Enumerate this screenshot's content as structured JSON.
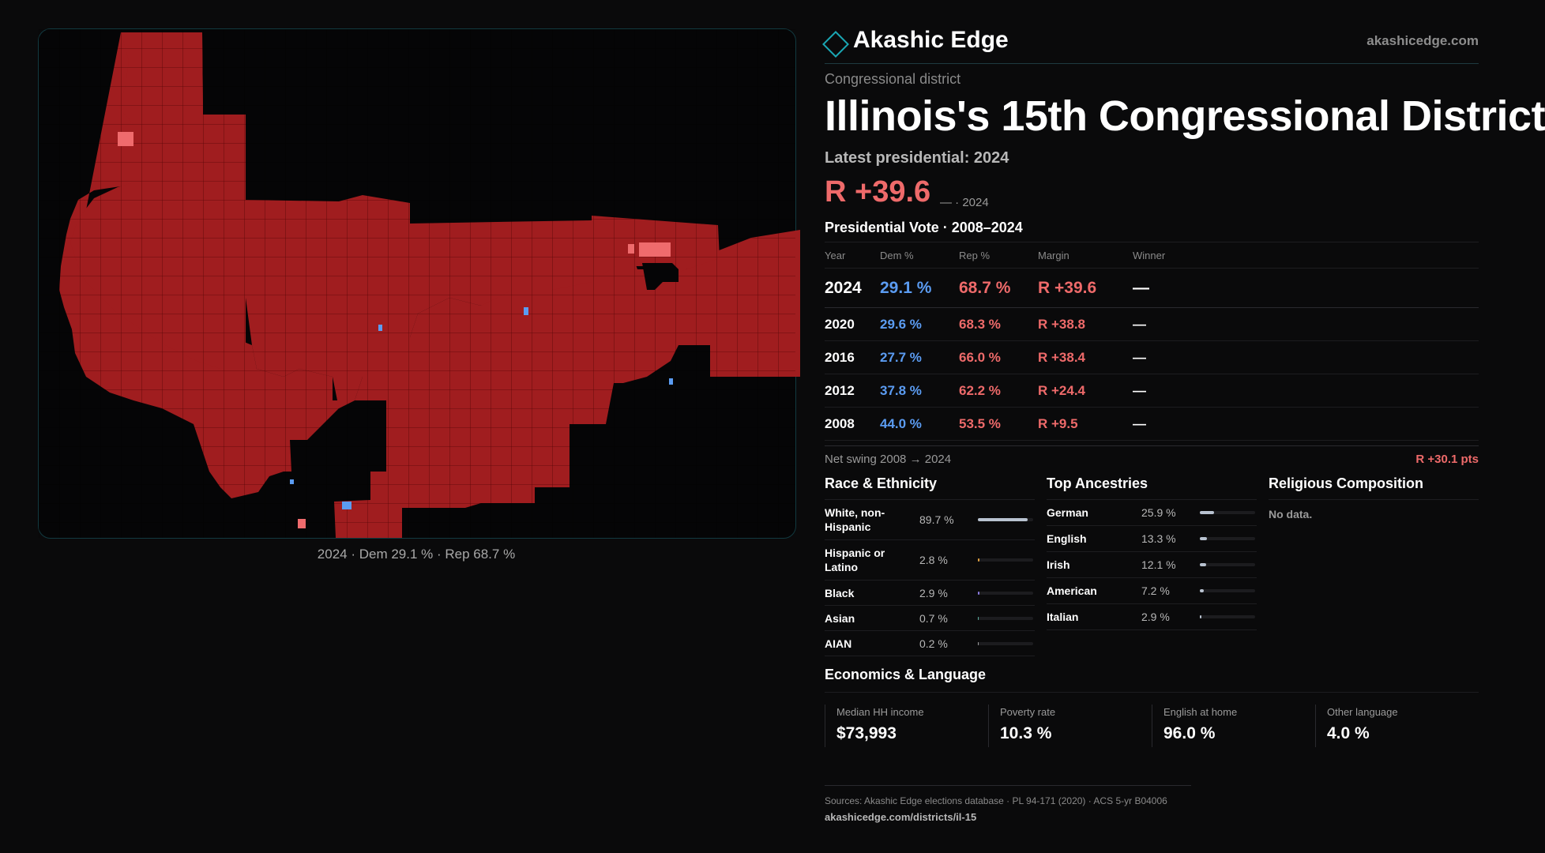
{
  "brand": {
    "name": "Akashic Edge",
    "url": "akashicedge.com"
  },
  "header": {
    "subtitle": "Congressional district",
    "title": "Illinois's 15th Congressional District",
    "latest": "Latest presidential: 2024",
    "margin": "R +39.6",
    "margin_note": "— · 2024"
  },
  "map": {
    "caption": "2024 · Dem 29.1 % · Rep 68.7 %",
    "colors": {
      "rep": "#a01d1f",
      "rep_light": "#ef6b6d",
      "dem": "#5b9cf2",
      "bg": "#050506"
    }
  },
  "vote": {
    "title": "Presidential Vote · 2008–2024",
    "columns": [
      "Year",
      "Dem %",
      "Rep %",
      "Margin",
      "Winner"
    ],
    "rows": [
      {
        "year": "2024",
        "dem": "29.1 %",
        "rep": "68.7 %",
        "margin": "R +39.6",
        "winner": "—"
      },
      {
        "year": "2020",
        "dem": "29.6 %",
        "rep": "68.3 %",
        "margin": "R +38.8",
        "winner": "—"
      },
      {
        "year": "2016",
        "dem": "27.7 %",
        "rep": "66.0 %",
        "margin": "R +38.4",
        "winner": "—"
      },
      {
        "year": "2012",
        "dem": "37.8 %",
        "rep": "62.2 %",
        "margin": "R +24.4",
        "winner": "—"
      },
      {
        "year": "2008",
        "dem": "44.0 %",
        "rep": "53.5 %",
        "margin": "R +9.5",
        "winner": "—"
      }
    ],
    "swing_label": "Net swing 2008 → 2024",
    "swing_value": "R +30.1 pts"
  },
  "race": {
    "title": "Race & Ethnicity",
    "items": [
      {
        "label": "White, non-Hispanic",
        "value": "89.7 %",
        "fraction": 0.897,
        "color": "#b8c2d0"
      },
      {
        "label": "Hispanic or Latino",
        "value": "2.8 %",
        "fraction": 0.028,
        "color": "#e0a040"
      },
      {
        "label": "Black",
        "value": "2.9 %",
        "fraction": 0.029,
        "color": "#8a7ae0"
      },
      {
        "label": "Asian",
        "value": "0.7 %",
        "fraction": 0.007,
        "color": "#5bb0a0"
      },
      {
        "label": "AIAN",
        "value": "0.2 %",
        "fraction": 0.002,
        "color": "#a0a0a0"
      }
    ]
  },
  "ancestries": {
    "title": "Top Ancestries",
    "items": [
      {
        "label": "German",
        "value": "25.9 %",
        "fraction": 0.259,
        "color": "#b8c2d0"
      },
      {
        "label": "English",
        "value": "13.3 %",
        "fraction": 0.133,
        "color": "#b8c2d0"
      },
      {
        "label": "Irish",
        "value": "12.1 %",
        "fraction": 0.121,
        "color": "#b8c2d0"
      },
      {
        "label": "American",
        "value": "7.2 %",
        "fraction": 0.072,
        "color": "#b8c2d0"
      },
      {
        "label": "Italian",
        "value": "2.9 %",
        "fraction": 0.029,
        "color": "#b8c2d0"
      }
    ]
  },
  "religion": {
    "title": "Religious Composition",
    "empty": "No data."
  },
  "economics": {
    "title": "Economics & Language",
    "items": [
      {
        "label": "Median HH income",
        "value": "$73,993"
      },
      {
        "label": "Poverty rate",
        "value": "10.3 %"
      },
      {
        "label": "English at home",
        "value": "96.0 %"
      },
      {
        "label": "Other language",
        "value": "4.0 %"
      }
    ]
  },
  "footer": {
    "sources": "Sources: Akashic Edge elections database · PL 94-171 (2020) · ACS 5-yr B04006",
    "url": "akashicedge.com/districts/il-15"
  }
}
